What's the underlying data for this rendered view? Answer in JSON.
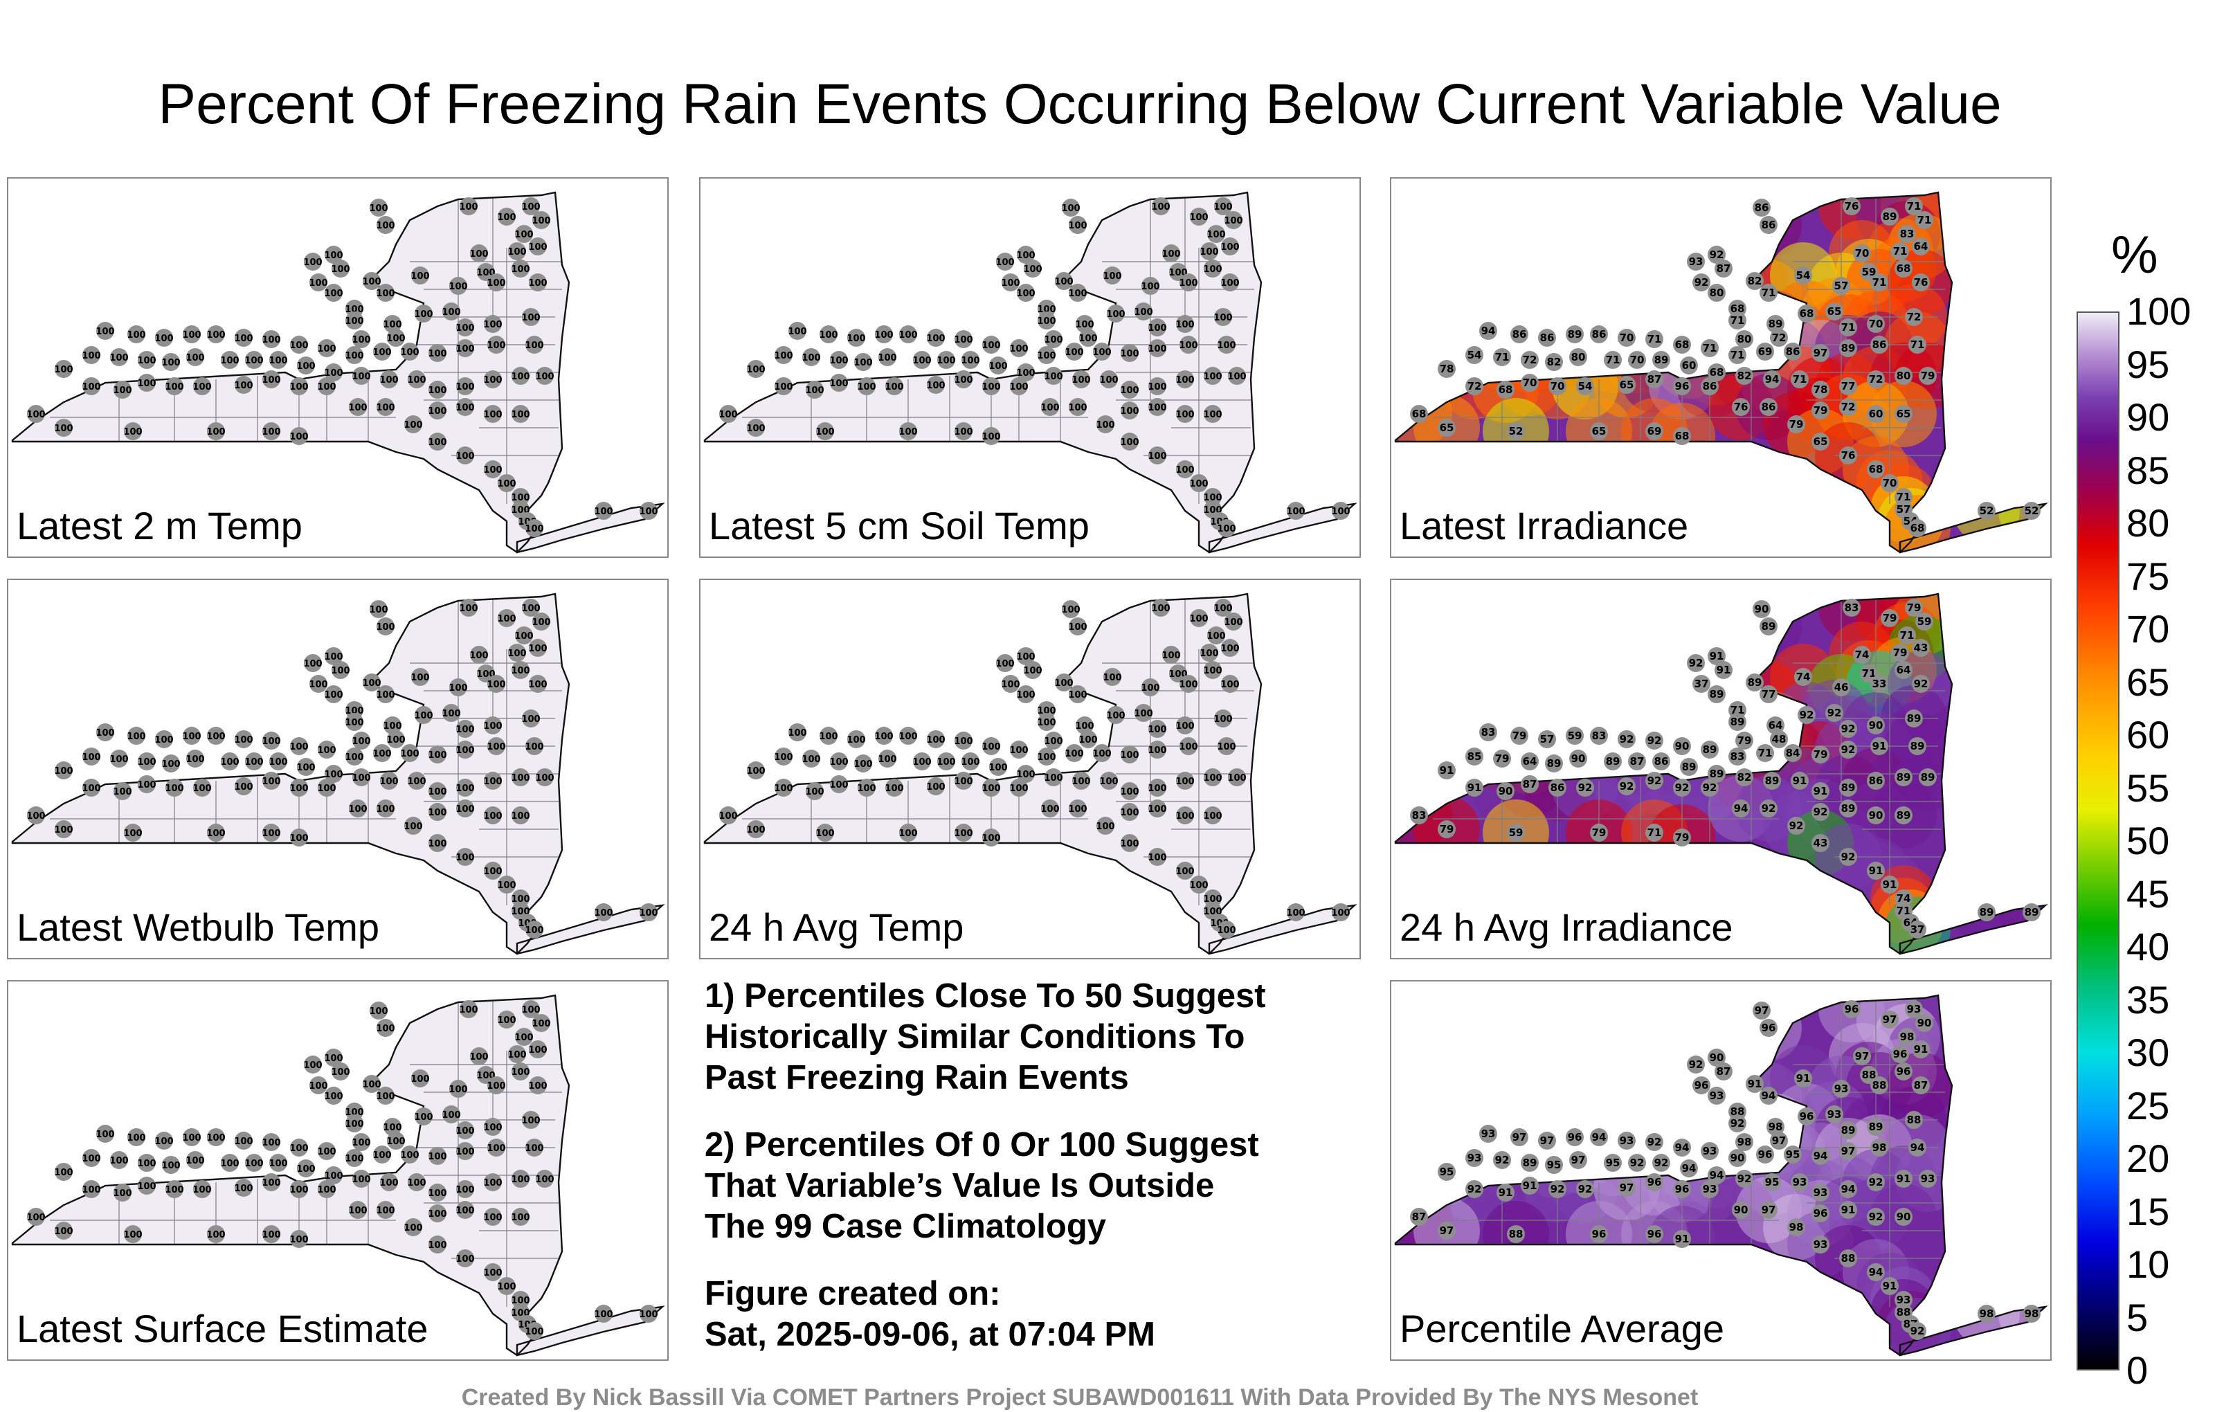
{
  "title": "Percent Of Freezing Rain Events Occurring Below Current Variable Value",
  "colorbar": {
    "unit": "%",
    "ticks": [
      "100",
      "95",
      "90",
      "85",
      "80",
      "75",
      "70",
      "65",
      "60",
      "55",
      "50",
      "45",
      "40",
      "35",
      "30",
      "25",
      "20",
      "15",
      "10",
      "5",
      "0"
    ],
    "stops": [
      {
        "v": 0,
        "c": "#000000"
      },
      {
        "v": 6,
        "c": "#000070"
      },
      {
        "v": 12,
        "c": "#0000e0"
      },
      {
        "v": 18,
        "c": "#0050ff"
      },
      {
        "v": 24,
        "c": "#00a0ff"
      },
      {
        "v": 30,
        "c": "#00e0e0"
      },
      {
        "v": 36,
        "c": "#00c080"
      },
      {
        "v": 42,
        "c": "#00b000"
      },
      {
        "v": 48,
        "c": "#80d000"
      },
      {
        "v": 53,
        "c": "#e8f000"
      },
      {
        "v": 58,
        "c": "#ffd000"
      },
      {
        "v": 65,
        "c": "#ff9000"
      },
      {
        "v": 72,
        "c": "#ff4000"
      },
      {
        "v": 78,
        "c": "#e00000"
      },
      {
        "v": 83,
        "c": "#a0004a"
      },
      {
        "v": 88,
        "c": "#6a0f8c"
      },
      {
        "v": 92,
        "c": "#7a40b0"
      },
      {
        "v": 96,
        "c": "#b58fd4"
      },
      {
        "v": 100,
        "c": "#f0ecf4"
      }
    ]
  },
  "panels": [
    {
      "label": "Latest 2 m Temp",
      "uniform": 100
    },
    {
      "label": "Latest 5 cm Soil Temp",
      "uniform": 100
    },
    {
      "label": "Latest Irradiance",
      "uniform": null
    },
    {
      "label": "Latest Wetbulb Temp",
      "uniform": 100
    },
    {
      "label": "24 h Avg Temp",
      "uniform": 100
    },
    {
      "label": "24 h Avg Irradiance",
      "uniform": null
    },
    {
      "label": "Latest Surface Estimate",
      "uniform": 100
    },
    null,
    {
      "label": "Percentile Average",
      "uniform": null
    }
  ],
  "stations_irradiance": [
    86,
    86,
    76,
    71,
    71,
    89,
    83,
    71,
    64,
    93,
    92,
    87,
    70,
    59,
    68,
    92,
    82,
    80,
    68,
    71,
    54,
    57,
    71,
    76,
    71,
    80,
    89,
    72,
    68,
    65,
    71,
    70,
    72,
    94,
    86,
    86,
    89,
    86,
    70,
    71,
    68,
    71,
    71,
    69,
    86,
    97,
    89,
    86,
    71,
    54,
    71,
    72,
    82,
    80,
    71,
    70,
    89,
    60,
    68,
    82,
    94,
    71,
    78,
    77,
    72,
    80,
    79,
    78,
    72,
    68,
    70,
    70,
    54,
    65,
    87,
    96,
    86,
    76,
    86,
    79,
    79,
    72,
    60,
    65,
    68,
    65,
    52,
    65,
    69,
    68,
    65,
    76,
    68,
    70,
    71,
    57,
    54,
    68,
    52,
    52
  ],
  "stations_avg_irradiance": [
    90,
    89,
    83,
    79,
    59,
    79,
    71,
    79,
    43,
    92,
    91,
    91,
    74,
    71,
    64,
    37,
    89,
    89,
    71,
    77,
    74,
    46,
    33,
    92,
    89,
    79,
    64,
    48,
    92,
    92,
    92,
    90,
    89,
    83,
    79,
    57,
    59,
    83,
    92,
    92,
    90,
    89,
    83,
    71,
    84,
    79,
    92,
    91,
    89,
    85,
    79,
    64,
    89,
    90,
    89,
    87,
    86,
    89,
    89,
    82,
    89,
    91,
    91,
    89,
    86,
    89,
    89,
    91,
    91,
    90,
    87,
    86,
    92,
    92,
    92,
    92,
    92,
    94,
    92,
    92,
    92,
    89
  ],
  "stations_average": [
    97,
    96,
    96,
    93,
    90,
    97,
    98,
    96,
    91,
    92,
    90,
    87,
    97,
    88,
    96,
    96,
    91,
    93,
    88,
    94,
    91,
    93,
    88,
    87,
    92,
    98,
    98,
    97,
    96,
    93,
    89,
    89,
    88,
    93,
    97,
    97,
    96,
    94,
    93,
    92,
    94,
    93,
    90,
    96,
    95,
    94,
    97,
    98,
    94,
    93,
    92,
    89,
    95,
    97,
    95,
    92,
    92,
    94,
    94,
    92,
    95,
    93,
    93,
    94,
    92,
    91,
    93,
    95,
    92,
    91,
    91,
    92,
    92
  ],
  "notes": [
    "1) Percentiles Close To 50 Suggest\nHistorically Similar Conditions To\nPast Freezing Rain Events",
    "2) Percentiles Of 0 Or 100 Suggest\nThat Variable’s Value Is Outside\nThe 99 Case Climatology",
    "Figure created on:\nSat, 2025-09-06, at 07:04 PM"
  ],
  "credit": "Created By Nick Bassill Via COMET Partners Project SUBAWD001611 With Data Provided By The NYS Mesonet"
}
